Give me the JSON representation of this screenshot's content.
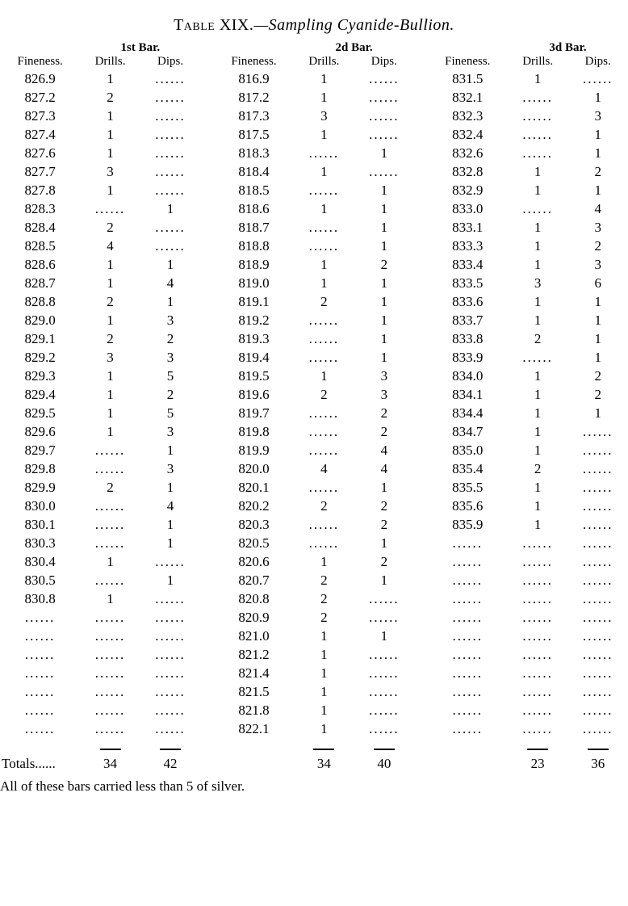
{
  "title_label": "Table XIX.",
  "title_text": "—Sampling Cyanide-Bullion.",
  "bar_headers": [
    "1st Bar.",
    "2d Bar.",
    "3d Bar."
  ],
  "col_headers": [
    "Fineness.",
    "Drills.",
    "Dips."
  ],
  "totals_label": "Totals......",
  "totals": {
    "b1_drills": "34",
    "b1_dips": "42",
    "b2_drills": "34",
    "b2_dips": "40",
    "b3_drills": "23",
    "b3_dips": "36"
  },
  "caption": "All of these bars carried less than 5 of silver.",
  "dots": "......",
  "rows": [
    {
      "b1f": "826.9",
      "b1dr": "1",
      "b1dp": "",
      "b2f": "816.9",
      "b2dr": "1",
      "b2dp": "",
      "b3f": "831.5",
      "b3dr": "1",
      "b3dp": ""
    },
    {
      "b1f": "827.2",
      "b1dr": "2",
      "b1dp": "",
      "b2f": "817.2",
      "b2dr": "1",
      "b2dp": "",
      "b3f": "832.1",
      "b3dr": "",
      "b3dp": "1"
    },
    {
      "b1f": "827.3",
      "b1dr": "1",
      "b1dp": "",
      "b2f": "817.3",
      "b2dr": "3",
      "b2dp": "",
      "b3f": "832.3",
      "b3dr": "",
      "b3dp": "3"
    },
    {
      "b1f": "827.4",
      "b1dr": "1",
      "b1dp": "",
      "b2f": "817.5",
      "b2dr": "1",
      "b2dp": "",
      "b3f": "832.4",
      "b3dr": "",
      "b3dp": "1"
    },
    {
      "b1f": "827.6",
      "b1dr": "1",
      "b1dp": "",
      "b2f": "818.3",
      "b2dr": "",
      "b2dp": "1",
      "b3f": "832.6",
      "b3dr": "",
      "b3dp": "1"
    },
    {
      "b1f": "827.7",
      "b1dr": "3",
      "b1dp": "",
      "b2f": "818.4",
      "b2dr": "1",
      "b2dp": "",
      "b3f": "832.8",
      "b3dr": "1",
      "b3dp": "2"
    },
    {
      "b1f": "827.8",
      "b1dr": "1",
      "b1dp": "",
      "b2f": "818.5",
      "b2dr": "",
      "b2dp": "1",
      "b3f": "832.9",
      "b3dr": "1",
      "b3dp": "1"
    },
    {
      "b1f": "828.3",
      "b1dr": "",
      "b1dp": "1",
      "b2f": "818.6",
      "b2dr": "1",
      "b2dp": "1",
      "b3f": "833.0",
      "b3dr": "",
      "b3dp": "4"
    },
    {
      "b1f": "828.4",
      "b1dr": "2",
      "b1dp": "",
      "b2f": "818.7",
      "b2dr": "",
      "b2dp": "1",
      "b3f": "833.1",
      "b3dr": "1",
      "b3dp": "3"
    },
    {
      "b1f": "828.5",
      "b1dr": "4",
      "b1dp": "",
      "b2f": "818.8",
      "b2dr": "",
      "b2dp": "1",
      "b3f": "833.3",
      "b3dr": "1",
      "b3dp": "2"
    },
    {
      "b1f": "828.6",
      "b1dr": "1",
      "b1dp": "1",
      "b2f": "818.9",
      "b2dr": "1",
      "b2dp": "2",
      "b3f": "833.4",
      "b3dr": "1",
      "b3dp": "3"
    },
    {
      "b1f": "828.7",
      "b1dr": "1",
      "b1dp": "4",
      "b2f": "819.0",
      "b2dr": "1",
      "b2dp": "1",
      "b3f": "833.5",
      "b3dr": "3",
      "b3dp": "6"
    },
    {
      "b1f": "828.8",
      "b1dr": "2",
      "b1dp": "1",
      "b2f": "819.1",
      "b2dr": "2",
      "b2dp": "1",
      "b3f": "833.6",
      "b3dr": "1",
      "b3dp": "1"
    },
    {
      "b1f": "829.0",
      "b1dr": "1",
      "b1dp": "3",
      "b2f": "819.2",
      "b2dr": "",
      "b2dp": "1",
      "b3f": "833.7",
      "b3dr": "1",
      "b3dp": "1"
    },
    {
      "b1f": "829.1",
      "b1dr": "2",
      "b1dp": "2",
      "b2f": "819.3",
      "b2dr": "",
      "b2dp": "1",
      "b3f": "833.8",
      "b3dr": "2",
      "b3dp": "1"
    },
    {
      "b1f": "829.2",
      "b1dr": "3",
      "b1dp": "3",
      "b2f": "819.4",
      "b2dr": "",
      "b2dp": "1",
      "b3f": "833.9",
      "b3dr": "",
      "b3dp": "1"
    },
    {
      "b1f": "829.3",
      "b1dr": "1",
      "b1dp": "5",
      "b2f": "819.5",
      "b2dr": "1",
      "b2dp": "3",
      "b3f": "834.0",
      "b3dr": "1",
      "b3dp": "2"
    },
    {
      "b1f": "829.4",
      "b1dr": "1",
      "b1dp": "2",
      "b2f": "819.6",
      "b2dr": "2",
      "b2dp": "3",
      "b3f": "834.1",
      "b3dr": "1",
      "b3dp": "2"
    },
    {
      "b1f": "829.5",
      "b1dr": "1",
      "b1dp": "5",
      "b2f": "819.7",
      "b2dr": "",
      "b2dp": "2",
      "b3f": "834.4",
      "b3dr": "1",
      "b3dp": "1"
    },
    {
      "b1f": "829.6",
      "b1dr": "1",
      "b1dp": "3",
      "b2f": "819.8",
      "b2dr": "",
      "b2dp": "2",
      "b3f": "834.7",
      "b3dr": "1",
      "b3dp": ""
    },
    {
      "b1f": "829.7",
      "b1dr": "",
      "b1dp": "1",
      "b2f": "819.9",
      "b2dr": "",
      "b2dp": "4",
      "b3f": "835.0",
      "b3dr": "1",
      "b3dp": ""
    },
    {
      "b1f": "829.8",
      "b1dr": "",
      "b1dp": "3",
      "b2f": "820.0",
      "b2dr": "4",
      "b2dp": "4",
      "b3f": "835.4",
      "b3dr": "2",
      "b3dp": ""
    },
    {
      "b1f": "829.9",
      "b1dr": "2",
      "b1dp": "1",
      "b2f": "820.1",
      "b2dr": "",
      "b2dp": "1",
      "b3f": "835.5",
      "b3dr": "1",
      "b3dp": ""
    },
    {
      "b1f": "830.0",
      "b1dr": "",
      "b1dp": "4",
      "b2f": "820.2",
      "b2dr": "2",
      "b2dp": "2",
      "b3f": "835.6",
      "b3dr": "1",
      "b3dp": ""
    },
    {
      "b1f": "830.1",
      "b1dr": "",
      "b1dp": "1",
      "b2f": "820.3",
      "b2dr": "",
      "b2dp": "2",
      "b3f": "835.9",
      "b3dr": "1",
      "b3dp": ""
    },
    {
      "b1f": "830.3",
      "b1dr": "",
      "b1dp": "1",
      "b2f": "820.5",
      "b2dr": "",
      "b2dp": "1",
      "b3f": "",
      "b3dr": "",
      "b3dp": ""
    },
    {
      "b1f": "830.4",
      "b1dr": "1",
      "b1dp": "",
      "b2f": "820.6",
      "b2dr": "1",
      "b2dp": "2",
      "b3f": "",
      "b3dr": "",
      "b3dp": ""
    },
    {
      "b1f": "830.5",
      "b1dr": "",
      "b1dp": "1",
      "b2f": "820.7",
      "b2dr": "2",
      "b2dp": "1",
      "b3f": "",
      "b3dr": "",
      "b3dp": ""
    },
    {
      "b1f": "830.8",
      "b1dr": "1",
      "b1dp": "",
      "b2f": "820.8",
      "b2dr": "2",
      "b2dp": "",
      "b3f": "",
      "b3dr": "",
      "b3dp": ""
    },
    {
      "b1f": "",
      "b1dr": "",
      "b1dp": "",
      "b2f": "820.9",
      "b2dr": "2",
      "b2dp": "",
      "b3f": "",
      "b3dr": "",
      "b3dp": ""
    },
    {
      "b1f": "",
      "b1dr": "",
      "b1dp": "",
      "b2f": "821.0",
      "b2dr": "1",
      "b2dp": "1",
      "b3f": "",
      "b3dr": "",
      "b3dp": ""
    },
    {
      "b1f": "",
      "b1dr": "",
      "b1dp": "",
      "b2f": "821.2",
      "b2dr": "1",
      "b2dp": "",
      "b3f": "",
      "b3dr": "",
      "b3dp": ""
    },
    {
      "b1f": "",
      "b1dr": "",
      "b1dp": "",
      "b2f": "821.4",
      "b2dr": "1",
      "b2dp": "",
      "b3f": "",
      "b3dr": "",
      "b3dp": ""
    },
    {
      "b1f": "",
      "b1dr": "",
      "b1dp": "",
      "b2f": "821.5",
      "b2dr": "1",
      "b2dp": "",
      "b3f": "",
      "b3dr": "",
      "b3dp": ""
    },
    {
      "b1f": "",
      "b1dr": "",
      "b1dp": "",
      "b2f": "821.8",
      "b2dr": "1",
      "b2dp": "",
      "b3f": "",
      "b3dr": "",
      "b3dp": ""
    },
    {
      "b1f": "",
      "b1dr": "",
      "b1dp": "",
      "b2f": "822.1",
      "b2dr": "1",
      "b2dp": "",
      "b3f": "",
      "b3dr": "",
      "b3dp": ""
    }
  ]
}
